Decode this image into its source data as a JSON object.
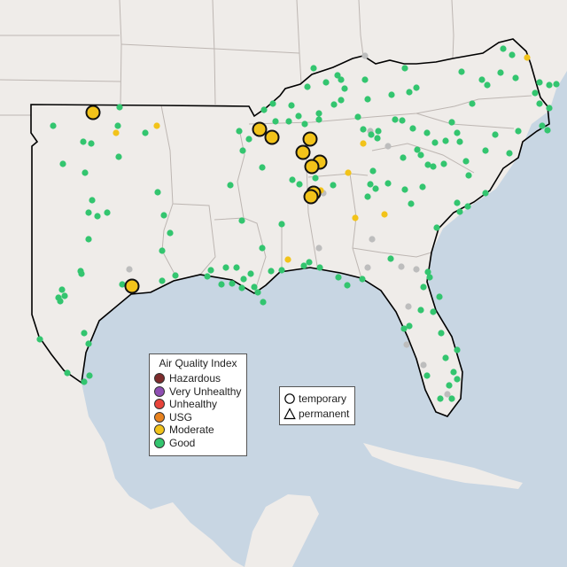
{
  "map": {
    "colors": {
      "land": "#efece9",
      "water": "#c8d6e3",
      "border": "#bdb6b2",
      "region_outline": "#000000",
      "monitor_nodata": "#bdbdbd"
    },
    "legend": {
      "title": "Air Quality Index",
      "items": [
        {
          "label": "Hazardous",
          "color": "#7e2c2c"
        },
        {
          "label": "Very Unhealthy",
          "color": "#8f4fb3"
        },
        {
          "label": "Unhealthy",
          "color": "#e8433a"
        },
        {
          "label": "USG",
          "color": "#e8821e"
        },
        {
          "label": "Moderate",
          "color": "#f2c31a"
        },
        {
          "label": "Good",
          "color": "#33c56f"
        }
      ]
    },
    "symbol_legend": {
      "items": [
        {
          "label": "temporary",
          "icon": "circle-icon"
        },
        {
          "label": "permanent",
          "icon": "triangle-icon"
        }
      ]
    },
    "large_monitors": {
      "category": "Moderate",
      "points": [
        [
          105,
          127
        ],
        [
          293,
          146
        ],
        [
          307,
          155
        ],
        [
          350,
          157
        ],
        [
          342,
          172
        ],
        [
          361,
          183
        ],
        [
          352,
          188
        ],
        [
          354,
          218
        ],
        [
          351,
          222
        ],
        [
          149,
          323
        ]
      ]
    },
    "small_moderate": [
      [
        177,
        142
      ],
      [
        131,
        150
      ],
      [
        410,
        162
      ],
      [
        393,
        195
      ],
      [
        362,
        215
      ],
      [
        434,
        242
      ],
      [
        401,
        246
      ],
      [
        325,
        293
      ],
      [
        595,
        65
      ]
    ],
    "gray_monitors": [
      [
        412,
        63
      ],
      [
        418,
        148
      ],
      [
        438,
        165
      ],
      [
        360,
        280
      ],
      [
        420,
        270
      ],
      [
        146,
        304
      ],
      [
        415,
        302
      ],
      [
        453,
        301
      ],
      [
        470,
        304
      ],
      [
        461,
        346
      ],
      [
        459,
        389
      ],
      [
        478,
        412
      ],
      [
        505,
        445
      ],
      [
        365,
        218
      ]
    ],
    "good_monitors": [
      [
        135,
        121
      ],
      [
        60,
        142
      ],
      [
        94,
        160
      ],
      [
        103,
        162
      ],
      [
        133,
        142
      ],
      [
        164,
        150
      ],
      [
        71,
        185
      ],
      [
        96,
        195
      ],
      [
        134,
        177
      ],
      [
        178,
        217
      ],
      [
        104,
        226
      ],
      [
        100,
        240
      ],
      [
        121,
        240
      ],
      [
        110,
        244
      ],
      [
        185,
        243
      ],
      [
        192,
        263
      ],
      [
        100,
        270
      ],
      [
        183,
        283
      ],
      [
        91,
        306
      ],
      [
        92,
        309
      ],
      [
        70,
        327
      ],
      [
        73,
        334
      ],
      [
        68,
        340
      ],
      [
        66,
        336
      ],
      [
        198,
        311
      ],
      [
        183,
        317
      ],
      [
        138,
        321
      ],
      [
        95,
        376
      ],
      [
        100,
        388
      ],
      [
        45,
        383
      ],
      [
        76,
        421
      ],
      [
        95,
        431
      ],
      [
        101,
        424
      ],
      [
        308,
        117
      ],
      [
        298,
        124
      ],
      [
        329,
        119
      ],
      [
        347,
        98
      ],
      [
        354,
        77
      ],
      [
        368,
        93
      ],
      [
        381,
        85
      ],
      [
        385,
        90
      ],
      [
        389,
        100
      ],
      [
        385,
        113
      ],
      [
        412,
        90
      ],
      [
        415,
        112
      ],
      [
        457,
        77
      ],
      [
        470,
        99
      ],
      [
        442,
        107
      ],
      [
        462,
        104
      ],
      [
        521,
        81
      ],
      [
        568,
        55
      ],
      [
        578,
        62
      ],
      [
        582,
        88
      ],
      [
        565,
        82
      ],
      [
        550,
        96
      ],
      [
        533,
        117
      ],
      [
        544,
        90
      ],
      [
        609,
        93
      ],
      [
        609,
        117
      ],
      [
        604,
        105
      ],
      [
        620,
        96
      ],
      [
        628,
        95
      ],
      [
        311,
        137
      ],
      [
        326,
        137
      ],
      [
        337,
        131
      ],
      [
        344,
        140
      ],
      [
        360,
        135
      ],
      [
        377,
        118
      ],
      [
        360,
        128
      ],
      [
        404,
        132
      ],
      [
        410,
        146
      ],
      [
        419,
        152
      ],
      [
        426,
        156
      ],
      [
        446,
        135
      ],
      [
        427,
        148
      ],
      [
        454,
        136
      ],
      [
        466,
        145
      ],
      [
        482,
        150
      ],
      [
        491,
        161
      ],
      [
        510,
        138
      ],
      [
        519,
        160
      ],
      [
        516,
        150
      ],
      [
        503,
        159
      ],
      [
        559,
        152
      ],
      [
        585,
        148
      ],
      [
        548,
        170
      ],
      [
        575,
        173
      ],
      [
        612,
        142
      ],
      [
        618,
        147
      ],
      [
        620,
        122
      ],
      [
        270,
        148
      ],
      [
        281,
        157
      ],
      [
        274,
        170
      ],
      [
        260,
        209
      ],
      [
        296,
        189
      ],
      [
        273,
        249
      ],
      [
        296,
        280
      ],
      [
        318,
        253
      ],
      [
        338,
        208
      ],
      [
        330,
        203
      ],
      [
        356,
        201
      ],
      [
        376,
        209
      ],
      [
        421,
        193
      ],
      [
        424,
        213
      ],
      [
        418,
        208
      ],
      [
        415,
        222
      ],
      [
        438,
        207
      ],
      [
        455,
        178
      ],
      [
        471,
        169
      ],
      [
        475,
        175
      ],
      [
        483,
        186
      ],
      [
        489,
        188
      ],
      [
        501,
        185
      ],
      [
        526,
        182
      ],
      [
        529,
        198
      ],
      [
        548,
        218
      ],
      [
        516,
        229
      ],
      [
        519,
        239
      ],
      [
        528,
        233
      ],
      [
        493,
        257
      ],
      [
        477,
        211
      ],
      [
        457,
        214
      ],
      [
        464,
        230
      ],
      [
        255,
        302
      ],
      [
        267,
        302
      ],
      [
        275,
        315
      ],
      [
        273,
        325
      ],
      [
        283,
        309
      ],
      [
        287,
        324
      ],
      [
        291,
        330
      ],
      [
        297,
        341
      ],
      [
        306,
        306
      ],
      [
        318,
        305
      ],
      [
        343,
        300
      ],
      [
        349,
        296
      ],
      [
        361,
        302
      ],
      [
        382,
        313
      ],
      [
        409,
        315
      ],
      [
        392,
        322
      ],
      [
        441,
        292
      ],
      [
        478,
        324
      ],
      [
        483,
        307
      ],
      [
        485,
        313
      ],
      [
        489,
        352
      ],
      [
        496,
        335
      ],
      [
        475,
        350
      ],
      [
        462,
        368
      ],
      [
        456,
        371
      ],
      [
        498,
        376
      ],
      [
        516,
        395
      ],
      [
        503,
        404
      ],
      [
        512,
        420
      ],
      [
        516,
        428
      ],
      [
        507,
        435
      ],
      [
        510,
        450
      ],
      [
        497,
        450
      ],
      [
        482,
        424
      ],
      [
        238,
        305
      ],
      [
        250,
        321
      ],
      [
        262,
        320
      ],
      [
        234,
        312
      ]
    ]
  }
}
